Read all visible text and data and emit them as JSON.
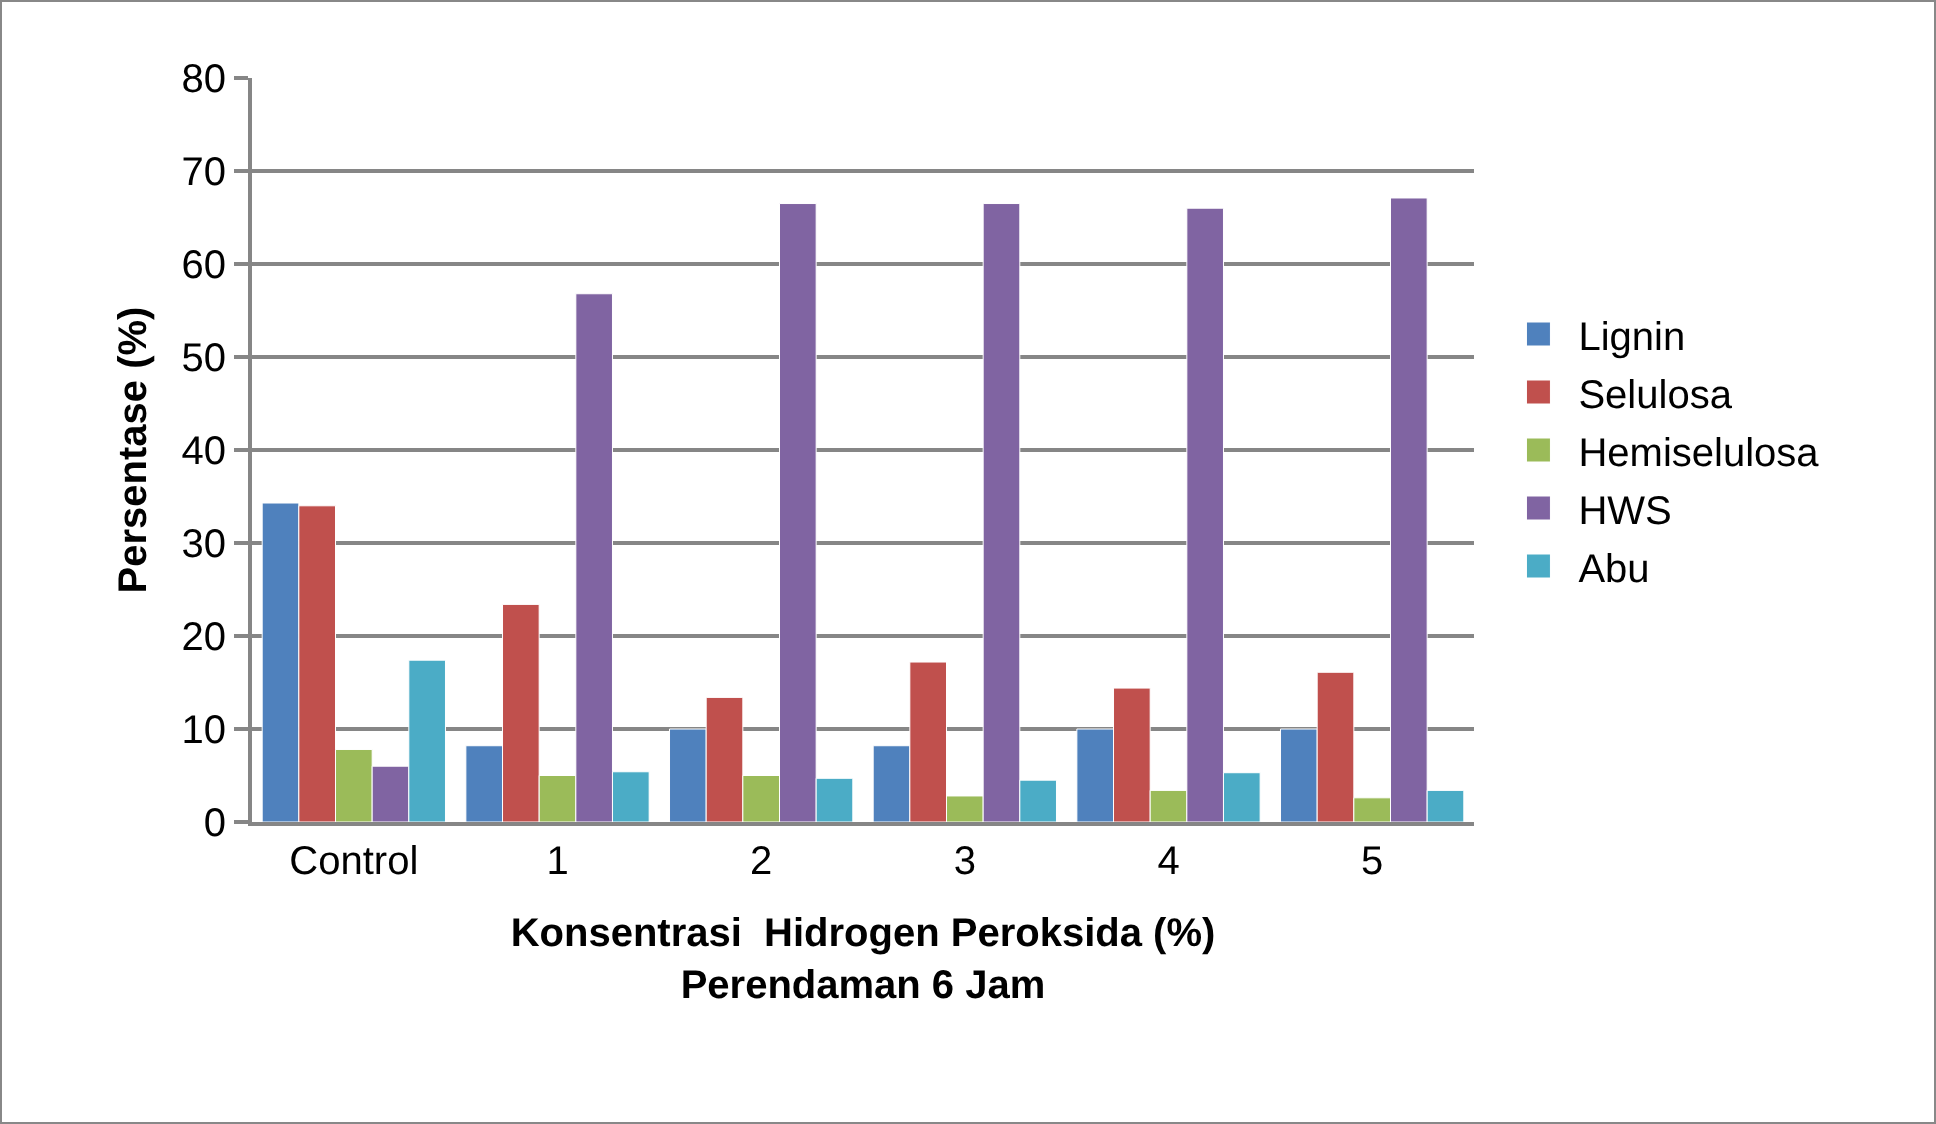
{
  "chart_data": {
    "type": "bar",
    "xlabel": "Konsentrasi  Hidrogen Peroksida (%)\nPerendaman 6 Jam",
    "ylabel": "Persentase (%)",
    "categories": [
      "Control",
      "1",
      "2",
      "3",
      "4",
      "5"
    ],
    "series": [
      {
        "name": "Lignin",
        "color": "#4f81bd",
        "values": [
          34.3,
          8.2,
          10.0,
          8.2,
          10.0,
          10.0
        ]
      },
      {
        "name": "Selulosa",
        "color": "#c0504d",
        "values": [
          34.0,
          23.4,
          13.4,
          17.2,
          14.4,
          16.1
        ]
      },
      {
        "name": "Hemiselulosa",
        "color": "#9bbb59",
        "values": [
          7.8,
          5.0,
          5.0,
          2.8,
          3.4,
          2.6
        ]
      },
      {
        "name": "HWS",
        "color": "#8064a2",
        "values": [
          6.0,
          56.8,
          66.5,
          66.5,
          66.0,
          67.1
        ]
      },
      {
        "name": "Abu",
        "color": "#4bacc6",
        "values": [
          17.4,
          5.4,
          4.7,
          4.5,
          5.3,
          3.4
        ]
      }
    ],
    "ylim": [
      0,
      80
    ],
    "yticks": [
      0,
      10,
      20,
      30,
      40,
      50,
      60,
      70,
      80
    ],
    "grid": "y",
    "legend": "right"
  }
}
